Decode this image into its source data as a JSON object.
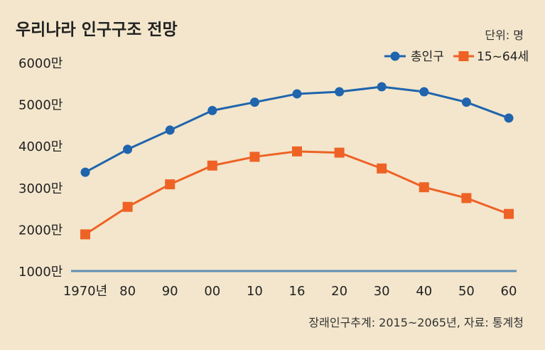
{
  "title": "우리나라 인구구조 전망",
  "unit": "단위: 명",
  "source": "장래인구추계: 2015~2065년, 자료: 통계청",
  "colors": {
    "background": "#f3e6cc",
    "total": "#1f64ad",
    "working": "#ee6226",
    "baseline": "#5f8fb3"
  },
  "chart_data": {
    "type": "line",
    "title": "우리나라 인구구조 전망",
    "xlabel": "",
    "ylabel": "",
    "categories": [
      "1970년",
      "80",
      "90",
      "00",
      "10",
      "16",
      "20",
      "30",
      "40",
      "50",
      "60"
    ],
    "yticks": [
      "1000만",
      "2000만",
      "3000만",
      "4000만",
      "5000만",
      "6000만"
    ],
    "ytick_values": [
      1000,
      2000,
      3000,
      4000,
      5000,
      6000
    ],
    "ylim": [
      1000,
      6000
    ],
    "legend_position": "top-right",
    "grid": false,
    "series": [
      {
        "name": "총인구",
        "marker": "circle",
        "values": [
          3370,
          3920,
          4380,
          4850,
          5050,
          5250,
          5300,
          5420,
          5300,
          5050,
          4670
        ]
      },
      {
        "name": "15~64세",
        "marker": "square",
        "values": [
          1880,
          2540,
          3080,
          3530,
          3740,
          3870,
          3840,
          3460,
          3010,
          2750,
          2370
        ]
      }
    ]
  }
}
